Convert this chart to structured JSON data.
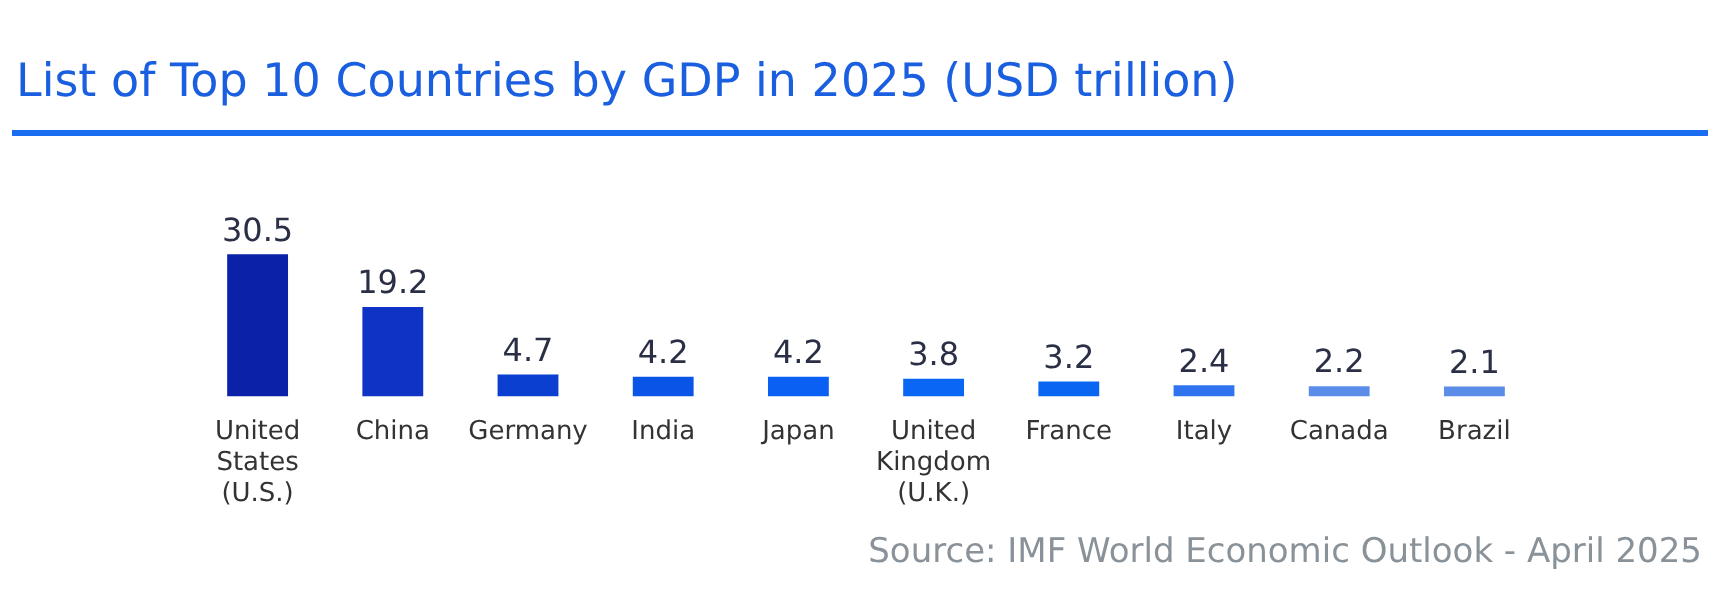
{
  "chart_data": {
    "type": "bar",
    "title": "List of Top 10 Countries by GDP in 2025 (USD trillion)",
    "categories": [
      "United States (U.S.)",
      "China",
      "Germany",
      "India",
      "Japan",
      "United Kingdom (U.K.)",
      "France",
      "Italy",
      "Canada",
      "Brazil"
    ],
    "values": [
      30.5,
      19.2,
      4.7,
      4.2,
      4.2,
      3.8,
      3.2,
      2.4,
      2.2,
      2.1
    ],
    "colors": [
      "#0b22a8",
      "#0f33c4",
      "#0a3fd0",
      "#0a55e8",
      "#0a60f2",
      "#0a66f5",
      "#0a66f0",
      "#2f74ee",
      "#5a8ce8",
      "#5a8ce8"
    ],
    "data_labels": true,
    "annotations": [
      "Source: IMF World Economic Outlook -  April 2025"
    ],
    "grid": false,
    "legend": false
  }
}
